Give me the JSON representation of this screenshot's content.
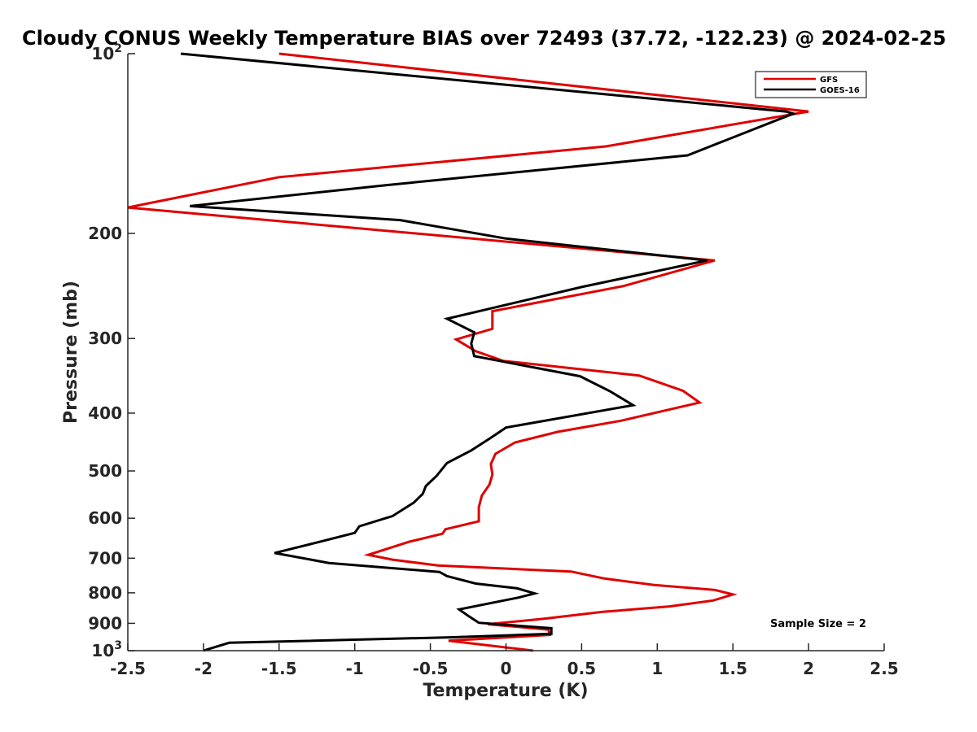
{
  "chart_data": {
    "type": "line",
    "title": "Cloudy CONUS Weekly Temperature BIAS over 72493 (37.72, -122.23) @ 2024-02-25",
    "xlabel": "Temperature (K)",
    "ylabel": "Pressure (mb)",
    "xlim": [
      -2.5,
      2.5
    ],
    "ylim": [
      100,
      1000
    ],
    "y_scale": "log",
    "y_reversed": true,
    "grid": false,
    "legend_position": "top-right",
    "x_ticks": [
      {
        "value": -2.5,
        "label": "-2.5"
      },
      {
        "value": -2,
        "label": "-2"
      },
      {
        "value": -1.5,
        "label": "-1.5"
      },
      {
        "value": -1,
        "label": "-1"
      },
      {
        "value": -0.5,
        "label": "-0.5"
      },
      {
        "value": 0,
        "label": "0"
      },
      {
        "value": 0.5,
        "label": "0.5"
      },
      {
        "value": 1,
        "label": "1"
      },
      {
        "value": 1.5,
        "label": "1.5"
      },
      {
        "value": 2,
        "label": "2"
      },
      {
        "value": 2.5,
        "label": "2.5"
      }
    ],
    "y_ticks": [
      {
        "value": 100,
        "base": "10",
        "exp": "2"
      },
      {
        "value": 200,
        "label": "200"
      },
      {
        "value": 300,
        "label": "300"
      },
      {
        "value": 400,
        "label": "400"
      },
      {
        "value": 500,
        "label": "500"
      },
      {
        "value": 600,
        "label": "600"
      },
      {
        "value": 700,
        "label": "700"
      },
      {
        "value": 800,
        "label": "800"
      },
      {
        "value": 900,
        "label": "900"
      },
      {
        "value": 1000,
        "base": "10",
        "exp": "3"
      }
    ],
    "series": [
      {
        "name": "GFS",
        "color": "#e00000",
        "points": [
          [
            -1.5,
            100
          ],
          [
            2.0,
            125
          ],
          [
            0.66,
            143
          ],
          [
            -1.5,
            161
          ],
          [
            -2.5,
            181
          ],
          [
            1.38,
            222
          ],
          [
            0.78,
            245
          ],
          [
            -0.09,
            270
          ],
          [
            -0.09,
            289
          ],
          [
            -0.33,
            301
          ],
          [
            -0.2,
            315
          ],
          [
            -0.02,
            327
          ],
          [
            0.88,
            346
          ],
          [
            1.17,
            367
          ],
          [
            1.28,
            384
          ],
          [
            0.76,
            412
          ],
          [
            0.34,
            430
          ],
          [
            0.06,
            448
          ],
          [
            -0.07,
            468
          ],
          [
            -0.1,
            487
          ],
          [
            -0.09,
            507
          ],
          [
            -0.11,
            527
          ],
          [
            -0.16,
            550
          ],
          [
            -0.18,
            575
          ],
          [
            -0.18,
            607
          ],
          [
            -0.4,
            626
          ],
          [
            -0.42,
            637
          ],
          [
            -0.64,
            657
          ],
          [
            -0.91,
            691
          ],
          [
            -0.75,
            704
          ],
          [
            -0.45,
            720
          ],
          [
            0.43,
            737
          ],
          [
            0.65,
            757
          ],
          [
            0.98,
            776
          ],
          [
            1.38,
            791
          ],
          [
            1.5,
            805
          ],
          [
            1.37,
            824
          ],
          [
            1.08,
            843
          ],
          [
            0.64,
            861
          ],
          [
            0.25,
            884
          ],
          [
            -0.12,
            903
          ],
          [
            0.28,
            922
          ],
          [
            0.29,
            941
          ],
          [
            -0.38,
            962
          ],
          [
            0.18,
            1000
          ]
        ]
      },
      {
        "name": "GOES-16",
        "color": "#000000",
        "points": [
          [
            -2.15,
            100
          ],
          [
            1.85,
            125
          ],
          [
            1.9,
            126
          ],
          [
            1.2,
            148
          ],
          [
            -0.79,
            166
          ],
          [
            -2.09,
            180
          ],
          [
            -0.7,
            190
          ],
          [
            0.0,
            204
          ],
          [
            1.33,
            222
          ],
          [
            0.5,
            246
          ],
          [
            -0.39,
            278
          ],
          [
            -0.21,
            293
          ],
          [
            -0.23,
            306
          ],
          [
            -0.21,
            321
          ],
          [
            0.49,
            347
          ],
          [
            0.69,
            368
          ],
          [
            0.84,
            388
          ],
          [
            0.0,
            423
          ],
          [
            -0.1,
            440
          ],
          [
            -0.23,
            462
          ],
          [
            -0.39,
            485
          ],
          [
            -0.46,
            510
          ],
          [
            -0.53,
            530
          ],
          [
            -0.55,
            546
          ],
          [
            -0.61,
            565
          ],
          [
            -0.75,
            595
          ],
          [
            -0.97,
            619
          ],
          [
            -1.0,
            635
          ],
          [
            -1.23,
            657
          ],
          [
            -1.53,
            686
          ],
          [
            -1.17,
            713
          ],
          [
            -0.44,
            738
          ],
          [
            -0.39,
            750
          ],
          [
            -0.2,
            772
          ],
          [
            0.07,
            786
          ],
          [
            0.19,
            802
          ],
          [
            0.08,
            815
          ],
          [
            -0.31,
            853
          ],
          [
            -0.25,
            874
          ],
          [
            -0.18,
            898
          ],
          [
            0.3,
            917
          ],
          [
            0.3,
            937
          ],
          [
            -0.37,
            950
          ],
          [
            -1.83,
            970
          ],
          [
            -2.0,
            1000
          ]
        ]
      }
    ],
    "annotation": "Sample Size = 2"
  }
}
